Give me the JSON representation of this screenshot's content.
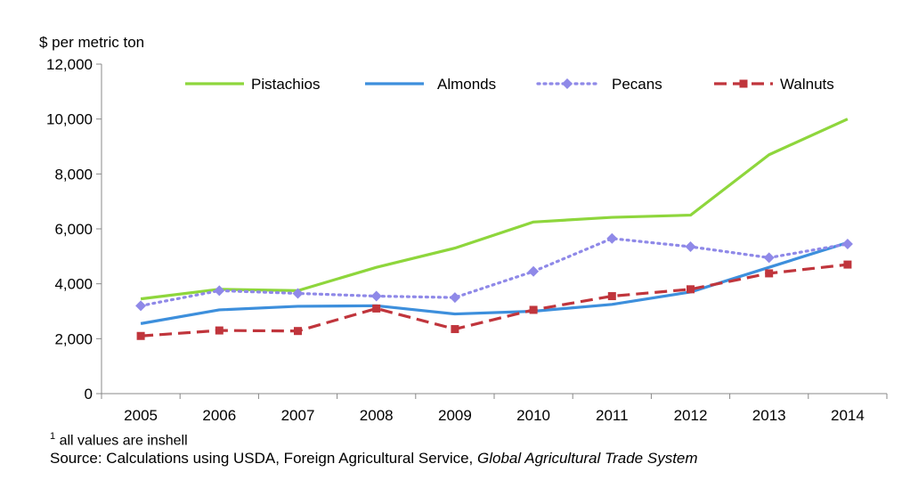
{
  "chart_data": {
    "type": "line",
    "ylabel": "$ per metric ton",
    "ylim": [
      0,
      12000
    ],
    "yticks": [
      0,
      2000,
      4000,
      6000,
      8000,
      10000,
      12000
    ],
    "ytick_labels": [
      "0",
      "2,000",
      "4,000",
      "6,000",
      "8,000",
      "10,000",
      "12,000"
    ],
    "categories": [
      "2005",
      "2006",
      "2007",
      "2008",
      "2009",
      "2010",
      "2011",
      "2012",
      "2013",
      "2014"
    ],
    "grid": false,
    "legend_position": "top",
    "series": [
      {
        "name": "Pistachios",
        "color": "#8ed63c",
        "style": "solid",
        "marker": "none",
        "values": [
          3450,
          3800,
          3750,
          4600,
          5300,
          6250,
          6420,
          6500,
          8700,
          10000
        ]
      },
      {
        "name": "Almonds",
        "color": "#3d8fdc",
        "style": "solid",
        "marker": "none",
        "values": [
          2550,
          3050,
          3180,
          3200,
          2900,
          3000,
          3250,
          3700,
          4600,
          5500
        ]
      },
      {
        "name": "Pecans",
        "color": "#8f89e8",
        "style": "dotted",
        "marker": "diamond",
        "values": [
          3200,
          3750,
          3650,
          3550,
          3500,
          4450,
          5650,
          5350,
          4950,
          5450
        ]
      },
      {
        "name": "Walnuts",
        "color": "#c0353c",
        "style": "dashed",
        "marker": "square",
        "values": [
          2100,
          2300,
          2280,
          3100,
          2350,
          3050,
          3550,
          3800,
          4380,
          4700
        ]
      }
    ]
  },
  "footnote": {
    "marker": "1",
    "text": " all values  are inshell",
    "source_prefix": "Source: Calculations using USDA, Foreign Agricultural Service, ",
    "source_italic": "Global Agricultural Trade System"
  }
}
